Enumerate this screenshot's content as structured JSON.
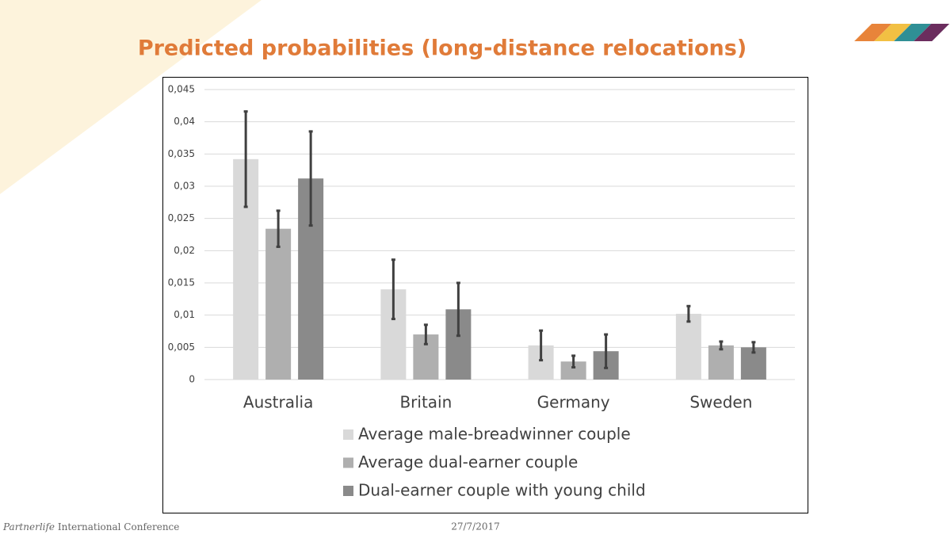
{
  "chart_data": {
    "type": "bar",
    "title": "Predicted probabilities (long-distance relocations)",
    "categories": [
      "Australia",
      "Britain",
      "Germany",
      "Sweden"
    ],
    "series": [
      {
        "name": "Average male-breadwinner couple",
        "color": "#d9d9d9",
        "values": [
          0.0342,
          0.014,
          0.0053,
          0.0102
        ],
        "errors": [
          0.0074,
          0.0046,
          0.0023,
          0.0012
        ]
      },
      {
        "name": "Average dual-earner couple",
        "color": "#afafaf",
        "values": [
          0.0234,
          0.007,
          0.0028,
          0.0053
        ],
        "errors": [
          0.0028,
          0.0015,
          0.0009,
          0.0006
        ]
      },
      {
        "name": "Dual-earner couple with young child",
        "color": "#8a8a8a",
        "values": [
          0.0312,
          0.0109,
          0.0044,
          0.005
        ],
        "errors": [
          0.0073,
          0.0041,
          0.0026,
          0.0008
        ]
      }
    ],
    "error_color": "#404040",
    "ylim": [
      0,
      0.045
    ],
    "yticks": [
      0,
      {
        "value": 0.005,
        "label": "0,005"
      },
      {
        "value": 0.01,
        "label": "0,01"
      },
      {
        "value": 0.015,
        "label": "0,015"
      },
      {
        "value": 0.02,
        "label": "0,02"
      },
      {
        "value": 0.025,
        "label": "0,025"
      },
      {
        "value": 0.03,
        "label": "0,03"
      },
      {
        "value": 0.035,
        "label": "0,035"
      },
      {
        "value": 0.04,
        "label": "0,04"
      },
      {
        "value": 0.045,
        "label": "0,045"
      }
    ],
    "grid": true
  },
  "footer": {
    "organizer": "Partnerlife",
    "event": "International Conference",
    "date": "27/7/2017"
  }
}
